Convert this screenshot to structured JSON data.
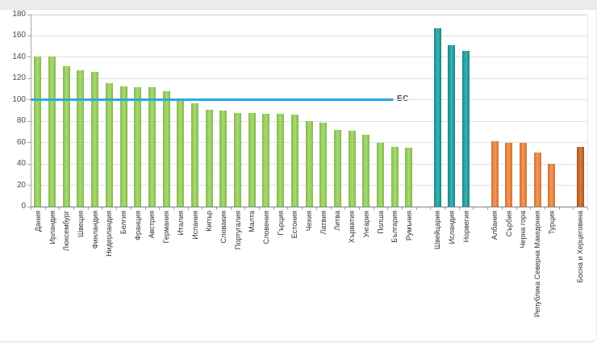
{
  "window": {
    "top_strip_color": "#ececec"
  },
  "chart_data": {
    "type": "bar",
    "title": "",
    "xlabel": "",
    "ylabel": "",
    "ylim": [
      0,
      180
    ],
    "ytick_step": 20,
    "ytick_labels": [
      "0",
      "20",
      "40",
      "60",
      "80",
      "100",
      "120",
      "140",
      "160",
      "180"
    ],
    "grid": true,
    "legend": "none",
    "reference_line": {
      "label": "ЕС",
      "value": 100,
      "color": "#29abe2"
    },
    "series": [
      {
        "name": "eu-members",
        "color": "#92d050",
        "categories": [
          "Дания",
          "Ирландия",
          "Люксембург",
          "Швеция",
          "Финландия",
          "Нидерландия",
          "Белгия",
          "Франция",
          "Австрия",
          "Германия",
          "Италия",
          "Испания",
          "Кипър",
          "Словакия",
          "Португалия",
          "Малта",
          "Словения",
          "Гърция",
          "Естония",
          "Чехия",
          "Латвия",
          "Литва",
          "Хърватия",
          "Унгария",
          "Полша",
          "България",
          "Румъния"
        ],
        "values": [
          141,
          141,
          132,
          128,
          126,
          116,
          113,
          112,
          112,
          108,
          99,
          97,
          91,
          90,
          88,
          88,
          87,
          87,
          86,
          80,
          79,
          72,
          71,
          67,
          60,
          56,
          55
        ]
      },
      {
        "name": "efta-countries",
        "color": "#0f9a9a",
        "categories": [
          "Швейцария",
          "Исландия",
          "Норвегия"
        ],
        "values": [
          167,
          151,
          146
        ]
      },
      {
        "name": "candidate-countries",
        "color": "#ed7d31",
        "categories": [
          "Албания",
          "Сърбия",
          "Черна гора",
          "Република Северна Македония",
          "Турция"
        ],
        "values": [
          61,
          60,
          60,
          51,
          40
        ]
      },
      {
        "name": "potential-candidates",
        "color": "#c55a11",
        "categories": [
          "Босна и Херцеговина"
        ],
        "values": [
          56
        ]
      }
    ]
  }
}
